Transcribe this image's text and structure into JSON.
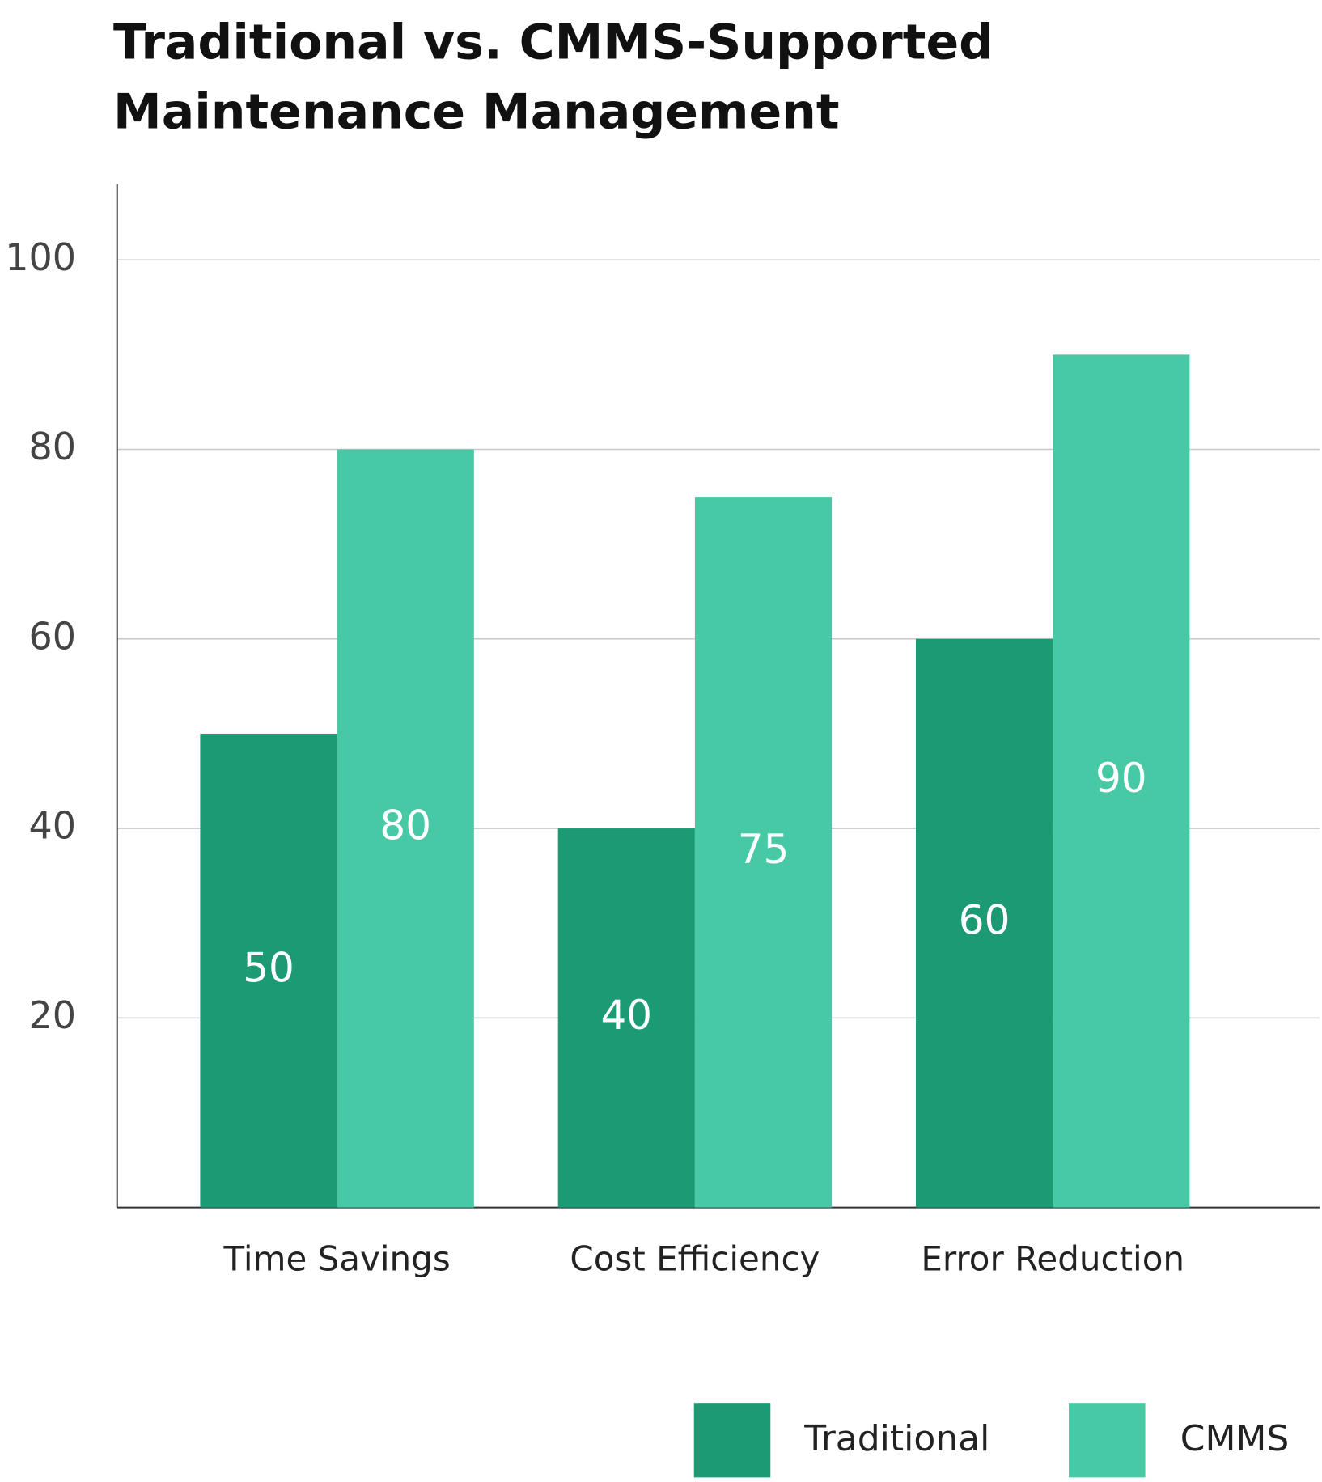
{
  "chart_data": {
    "type": "bar",
    "title": [
      "Traditional vs. CMMS-Supported",
      "Maintenance Management"
    ],
    "categories": [
      "Time Savings",
      "Cost Efficiency",
      "Error Reduction"
    ],
    "series": [
      {
        "name": "Traditional",
        "color": "#1c9a74",
        "values": [
          50,
          40,
          60
        ]
      },
      {
        "name": "CMMS",
        "color": "#48c9a5",
        "values": [
          80,
          75,
          90
        ]
      }
    ],
    "ylim": [
      0,
      108
    ],
    "yticks": [
      20,
      40,
      60,
      80,
      100
    ],
    "grid": true
  }
}
